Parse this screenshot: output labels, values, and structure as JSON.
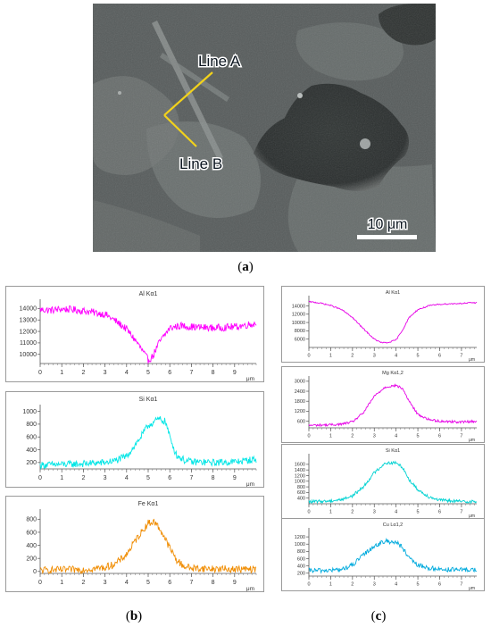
{
  "figure": {
    "captions": {
      "a": "a",
      "b": "b",
      "c": "c"
    },
    "sem_image": {
      "line_a_label": "Line A",
      "line_b_label": "Line B",
      "scale_bar_label": "10 μm",
      "line_color": "#f2d21b",
      "label_fill": "#0c1620"
    }
  },
  "chart_data": [
    {
      "id": "b1",
      "type": "line",
      "title": "Al Kα1",
      "color": "#ff00ff",
      "xunit": "μm",
      "xlim": [
        0,
        10
      ],
      "xticks": [
        0,
        1,
        2,
        3,
        4,
        5,
        6,
        7,
        8,
        9
      ],
      "yticks": [
        10000,
        11000,
        12000,
        13000,
        14000
      ],
      "ylim": [
        9200,
        14500
      ],
      "profile": [
        [
          0,
          13900
        ],
        [
          0.5,
          13850
        ],
        [
          1,
          13950
        ],
        [
          1.5,
          13900
        ],
        [
          2,
          13800
        ],
        [
          2.5,
          13650
        ],
        [
          3,
          13500
        ],
        [
          3.5,
          12900
        ],
        [
          4,
          12200
        ],
        [
          4.5,
          11000
        ],
        [
          4.8,
          10100
        ],
        [
          5,
          9500
        ],
        [
          5.2,
          9800
        ],
        [
          5.5,
          11000
        ],
        [
          6,
          12300
        ],
        [
          6.5,
          12500
        ],
        [
          7,
          12400
        ],
        [
          8,
          12300
        ],
        [
          9,
          12400
        ],
        [
          10,
          12700
        ]
      ],
      "noise": 320
    },
    {
      "id": "b2",
      "type": "line",
      "title": "Si Kα1",
      "color": "#00e6e6",
      "xunit": "μm",
      "xlim": [
        0,
        10
      ],
      "xticks": [
        0,
        1,
        2,
        3,
        4,
        5,
        6,
        7,
        8,
        9
      ],
      "yticks": [
        200,
        400,
        600,
        800,
        1000
      ],
      "ylim": [
        100,
        1050
      ],
      "profile": [
        [
          0,
          160
        ],
        [
          1,
          170
        ],
        [
          2,
          180
        ],
        [
          3,
          200
        ],
        [
          3.5,
          230
        ],
        [
          4,
          300
        ],
        [
          4.5,
          520
        ],
        [
          5,
          780
        ],
        [
          5.5,
          880
        ],
        [
          5.8,
          840
        ],
        [
          6,
          600
        ],
        [
          6.3,
          320
        ],
        [
          6.7,
          230
        ],
        [
          7,
          210
        ],
        [
          8,
          200
        ],
        [
          9,
          210
        ],
        [
          10,
          250
        ]
      ],
      "noise": 55
    },
    {
      "id": "b3",
      "type": "line",
      "title": "Fe Kα1",
      "color": "#f08c00",
      "xunit": "μm",
      "xlim": [
        0,
        10
      ],
      "xticks": [
        0,
        1,
        2,
        3,
        4,
        5,
        6,
        7,
        8,
        9
      ],
      "yticks": [
        0,
        200,
        400,
        600,
        800
      ],
      "ylim": [
        -30,
        900
      ],
      "profile": [
        [
          0,
          20
        ],
        [
          1,
          25
        ],
        [
          2,
          30
        ],
        [
          3,
          60
        ],
        [
          3.5,
          120
        ],
        [
          4,
          260
        ],
        [
          4.5,
          520
        ],
        [
          5,
          740
        ],
        [
          5.3,
          760
        ],
        [
          5.6,
          620
        ],
        [
          6,
          360
        ],
        [
          6.3,
          180
        ],
        [
          6.6,
          90
        ],
        [
          7,
          50
        ],
        [
          8,
          40
        ],
        [
          9,
          35
        ],
        [
          10,
          30
        ]
      ],
      "noise": 55
    },
    {
      "id": "c1",
      "type": "line",
      "title": "Al Kα1",
      "color": "#e600e6",
      "xunit": "μm",
      "xlim": [
        0,
        7.7
      ],
      "xticks": [
        0,
        1,
        2,
        3,
        4,
        5,
        6,
        7
      ],
      "yticks": [
        6000,
        8000,
        10000,
        12000,
        14000
      ],
      "ylim": [
        4000,
        15600
      ],
      "profile": [
        [
          0,
          15000
        ],
        [
          0.5,
          14700
        ],
        [
          1,
          14100
        ],
        [
          1.5,
          13100
        ],
        [
          2,
          11200
        ],
        [
          2.5,
          8500
        ],
        [
          3,
          6000
        ],
        [
          3.3,
          5200
        ],
        [
          3.6,
          5100
        ],
        [
          4,
          5800
        ],
        [
          4.3,
          8200
        ],
        [
          4.6,
          11200
        ],
        [
          5,
          13100
        ],
        [
          5.5,
          14000
        ],
        [
          6,
          14400
        ],
        [
          7,
          14600
        ],
        [
          7.7,
          14800
        ]
      ],
      "noise": 150
    },
    {
      "id": "c2",
      "type": "line",
      "title": "Mg Kα1,2",
      "color": "#e600e6",
      "xunit": "μm",
      "xlim": [
        0,
        7.7
      ],
      "xticks": [
        0,
        1,
        2,
        3,
        4,
        5,
        6,
        7
      ],
      "yticks": [
        600,
        1200,
        1800,
        2400,
        3000
      ],
      "ylim": [
        200,
        3100
      ],
      "profile": [
        [
          0,
          350
        ],
        [
          1,
          380
        ],
        [
          1.5,
          420
        ],
        [
          2,
          560
        ],
        [
          2.5,
          1100
        ],
        [
          3,
          2100
        ],
        [
          3.5,
          2650
        ],
        [
          4,
          2750
        ],
        [
          4.3,
          2550
        ],
        [
          4.6,
          1800
        ],
        [
          5,
          1000
        ],
        [
          5.5,
          700
        ],
        [
          6,
          600
        ],
        [
          7,
          550
        ],
        [
          7.7,
          600
        ]
      ],
      "noise": 70
    },
    {
      "id": "c3",
      "type": "line",
      "title": "Si Kα1",
      "color": "#00d2d2",
      "xunit": "μm",
      "xlim": [
        0,
        7.7
      ],
      "xticks": [
        0,
        1,
        2,
        3,
        4,
        5,
        6,
        7
      ],
      "yticks": [
        400,
        600,
        800,
        1000,
        1200,
        1400,
        1600
      ],
      "ylim": [
        200,
        1850
      ],
      "profile": [
        [
          0,
          270
        ],
        [
          1,
          300
        ],
        [
          1.5,
          350
        ],
        [
          2,
          480
        ],
        [
          2.5,
          800
        ],
        [
          3,
          1300
        ],
        [
          3.5,
          1650
        ],
        [
          4,
          1650
        ],
        [
          4.3,
          1500
        ],
        [
          4.6,
          1050
        ],
        [
          5,
          700
        ],
        [
          5.5,
          450
        ],
        [
          6,
          330
        ],
        [
          7,
          280
        ],
        [
          7.7,
          280
        ]
      ],
      "noise": 55
    },
    {
      "id": "c4",
      "type": "line",
      "title": "Cu Lα1,2",
      "color": "#00aadd",
      "xunit": "μm",
      "xlim": [
        0,
        7.7
      ],
      "xticks": [
        0,
        1,
        2,
        3,
        4,
        5,
        6,
        7
      ],
      "yticks": [
        200,
        400,
        600,
        800,
        1000,
        1200
      ],
      "ylim": [
        120,
        1350
      ],
      "profile": [
        [
          0,
          270
        ],
        [
          1,
          280
        ],
        [
          1.5,
          300
        ],
        [
          2,
          420
        ],
        [
          2.5,
          700
        ],
        [
          3,
          950
        ],
        [
          3.5,
          1080
        ],
        [
          4,
          1060
        ],
        [
          4.3,
          900
        ],
        [
          4.6,
          600
        ],
        [
          5,
          420
        ],
        [
          5.5,
          340
        ],
        [
          6,
          310
        ],
        [
          7,
          290
        ],
        [
          7.7,
          300
        ]
      ],
      "noise": 65
    }
  ]
}
